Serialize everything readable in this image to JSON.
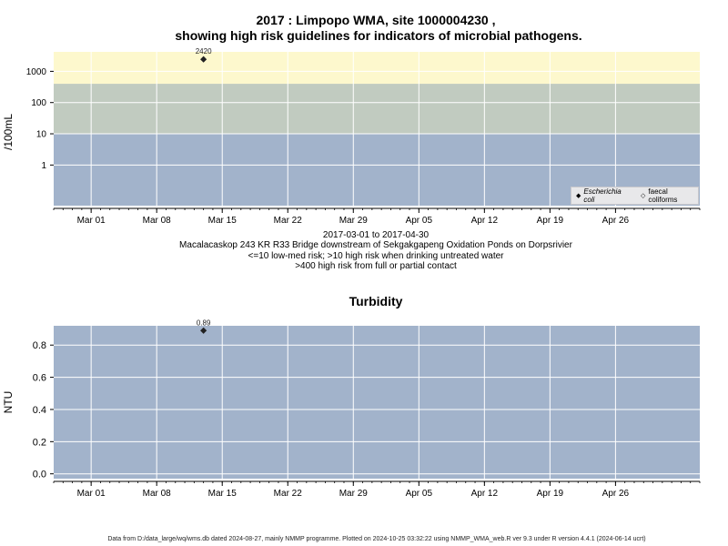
{
  "titles": {
    "line1": "2017 : Limpopo WMA, site 1000004230 ,",
    "line2": "showing high risk guidelines for indicators of microbial pathogens."
  },
  "info": {
    "date_range": "2017-03-01 to 2017-04-30",
    "site_desc": "Macalacaskop 243 KR R33 Bridge downstream of Sekgakgapeng Oxidation Ponds on Dorpsrivier",
    "risk1": "<=10 low-med risk; >10 high risk when drinking untreated water",
    "risk2": ">400 high risk from full or partial contact"
  },
  "footer": "Data from D:/data_large/wq/wms.db dated 2024-08-27, mainly NMMP programme. Plotted on 2024-10-25 03:32:22 using NMMP_WMA_web.R ver 9.3 under R version 4.4.1 (2024-06-14 ucrt)",
  "legend": {
    "ecoli_marker": "◆",
    "ecoli": "Escherichia coli",
    "faecal_marker": "◇",
    "faecal": "faecal coliforms"
  },
  "colors": {
    "low_band": "#a2b3cb",
    "mid_band": "#c1cbc0",
    "high_band": "#fdf8cd",
    "grid": "#ffffff",
    "point": "#222222"
  },
  "chart_data": [
    {
      "type": "scatter",
      "scale": "log",
      "ylabel": "/100mL",
      "yticks": [
        "1",
        "10",
        "100",
        "1000"
      ],
      "ylim": [
        0.05,
        4200
      ],
      "xlim": [
        "2017-02-25",
        "2017-05-05"
      ],
      "xticks": [
        "Mar 01",
        "Mar 08",
        "Mar 15",
        "Mar 22",
        "Mar 29",
        "Apr 05",
        "Apr 12",
        "Apr 19",
        "Apr 26"
      ],
      "xtick_dates": [
        "2017-03-01",
        "2017-03-08",
        "2017-03-15",
        "2017-03-22",
        "2017-03-29",
        "2017-04-05",
        "2017-04-12",
        "2017-04-19",
        "2017-04-26"
      ],
      "bands": [
        {
          "from": 0.05,
          "to": 10,
          "color": "#a2b3cb"
        },
        {
          "from": 10,
          "to": 400,
          "color": "#c1cbc0"
        },
        {
          "from": 400,
          "to": 4200,
          "color": "#fdf8cd"
        }
      ],
      "series": [
        {
          "name": "Escherichia coli",
          "marker": "filled-diamond",
          "points": [
            {
              "x": "2017-03-13",
              "y": 2420,
              "label": "2420"
            }
          ]
        },
        {
          "name": "faecal coliforms",
          "marker": "open-diamond",
          "points": []
        }
      ]
    },
    {
      "type": "scatter",
      "title": "Turbidity",
      "ylabel": "NTU",
      "yticks": [
        "0.0",
        "0.2",
        "0.4",
        "0.6",
        "0.8"
      ],
      "ytick_values": [
        0,
        0.2,
        0.4,
        0.6,
        0.8
      ],
      "ylim": [
        -0.03,
        0.92
      ],
      "xlim": [
        "2017-02-25",
        "2017-05-05"
      ],
      "xticks": [
        "Mar 01",
        "Mar 08",
        "Mar 15",
        "Mar 22",
        "Mar 29",
        "Apr 05",
        "Apr 12",
        "Apr 19",
        "Apr 26"
      ],
      "xtick_dates": [
        "2017-03-01",
        "2017-03-08",
        "2017-03-15",
        "2017-03-22",
        "2017-03-29",
        "2017-04-05",
        "2017-04-12",
        "2017-04-19",
        "2017-04-26"
      ],
      "series": [
        {
          "name": "Turbidity",
          "marker": "filled-diamond",
          "points": [
            {
              "x": "2017-03-13",
              "y": 0.89,
              "label": "0.89"
            }
          ]
        }
      ]
    }
  ]
}
